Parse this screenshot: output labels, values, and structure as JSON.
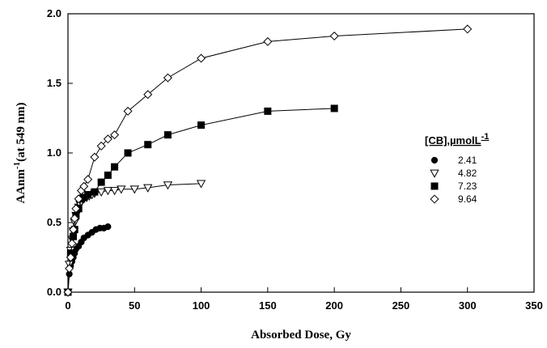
{
  "chart_data": {
    "type": "scatter",
    "xlabel": "Absorbed Dose, Gy",
    "ylabel_main": "AAnm",
    "ylabel_sup": "-1",
    "ylabel_tail": "(at 549 nm)",
    "xlim": [
      0,
      350
    ],
    "ylim": [
      0,
      2.0
    ],
    "xticks": [
      0,
      50,
      100,
      150,
      200,
      250,
      300,
      350
    ],
    "yticks": [
      "0.0",
      "0.5",
      "1.0",
      "1.5",
      "2.0"
    ],
    "grid": false,
    "legend": {
      "title_main": "[CB],µmolL",
      "title_sup": "-1",
      "placement": "right"
    },
    "series": [
      {
        "name": "2.41",
        "marker": "filled-circle",
        "x": [
          0,
          1,
          2,
          3,
          4,
          5,
          6,
          8,
          10,
          12,
          15,
          18,
          21,
          24,
          27,
          30
        ],
        "y": [
          0,
          0.13,
          0.19,
          0.22,
          0.25,
          0.28,
          0.31,
          0.33,
          0.36,
          0.39,
          0.41,
          0.43,
          0.45,
          0.46,
          0.46,
          0.47
        ]
      },
      {
        "name": "4.82",
        "marker": "open-triangle-down",
        "x": [
          0,
          1,
          2,
          3,
          4,
          5,
          6,
          7,
          8,
          9,
          10,
          12,
          14,
          16,
          18,
          20,
          25,
          30,
          35,
          40,
          50,
          60,
          75,
          100
        ],
        "y": [
          0,
          0.2,
          0.3,
          0.38,
          0.44,
          0.5,
          0.55,
          0.58,
          0.61,
          0.63,
          0.65,
          0.67,
          0.68,
          0.69,
          0.7,
          0.71,
          0.72,
          0.73,
          0.73,
          0.74,
          0.74,
          0.75,
          0.77,
          0.78
        ]
      },
      {
        "name": "7.23",
        "marker": "filled-square",
        "x": [
          0,
          2,
          4,
          5,
          6,
          8,
          10,
          12,
          15,
          20,
          25,
          30,
          35,
          45,
          60,
          75,
          100,
          150,
          200
        ],
        "y": [
          0,
          0.28,
          0.4,
          0.45,
          0.55,
          0.6,
          0.67,
          0.68,
          0.7,
          0.72,
          0.79,
          0.84,
          0.9,
          1.0,
          1.06,
          1.13,
          1.2,
          1.3,
          1.32
        ]
      },
      {
        "name": "9.64",
        "marker": "open-diamond",
        "x": [
          0,
          1,
          2,
          3,
          4,
          5,
          6,
          8,
          10,
          12,
          15,
          20,
          25,
          30,
          35,
          45,
          60,
          75,
          100,
          150,
          200,
          300
        ],
        "y": [
          0,
          0.17,
          0.25,
          0.35,
          0.45,
          0.53,
          0.6,
          0.67,
          0.73,
          0.76,
          0.81,
          0.97,
          1.05,
          1.1,
          1.13,
          1.3,
          1.42,
          1.54,
          1.68,
          1.8,
          1.84,
          1.89
        ]
      }
    ]
  }
}
